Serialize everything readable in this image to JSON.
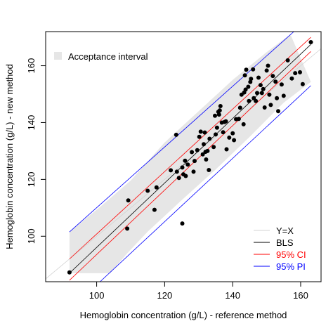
{
  "chart_data": {
    "type": "scatter",
    "xlabel": "Hemoglobin concentration (g/L) - reference method",
    "ylabel": "Hemoglobin concentration (g/L) - new method",
    "xlim": [
      85,
      166
    ],
    "ylim": [
      84,
      172
    ],
    "xticks": [
      100,
      120,
      140,
      160
    ],
    "yticks": [
      100,
      120,
      140,
      160
    ],
    "grid": false,
    "legend_top": {
      "position": "top-left",
      "label": "Acceptance interval",
      "color": "#e6e6e6"
    },
    "legend_bottom": {
      "position": "bottom-right",
      "entries": [
        {
          "label": "Y=X",
          "color": "#d3d3d3"
        },
        {
          "label": "BLS",
          "color": "#000000"
        },
        {
          "label": "95% CI",
          "color": "#ff0000"
        },
        {
          "label": "95% PI",
          "color": "#0000ff"
        }
      ]
    },
    "acceptance_interval": {
      "color": "#e6e6e6",
      "upper": [
        [
          92,
          101.5
        ],
        [
          101,
          110.3
        ],
        [
          110,
          119.6
        ],
        [
          120,
          133
        ],
        [
          130,
          144
        ],
        [
          140,
          155
        ],
        [
          150,
          164.8
        ],
        [
          157,
          171
        ]
      ],
      "lower": [
        [
          163,
          154.3
        ],
        [
          155,
          147
        ],
        [
          145,
          135
        ],
        [
          135,
          123.5
        ],
        [
          125,
          112.7
        ],
        [
          115,
          101.6
        ],
        [
          109,
          94
        ],
        [
          104,
          87
        ],
        [
          92,
          87
        ]
      ]
    },
    "lines": {
      "yx": {
        "x": [
          85,
          166
        ],
        "y": [
          85,
          166
        ]
      },
      "bls": {
        "x": [
          92,
          163
        ],
        "y": [
          87,
          167.5
        ]
      },
      "ci_upper": {
        "x": [
          92,
          163
        ],
        "y": [
          92,
          170
        ]
      },
      "ci_lower": {
        "x": [
          92,
          163
        ],
        "y": [
          84.5,
          165
        ]
      },
      "pi_upper": {
        "x": [
          92,
          158
        ],
        "y": [
          101.5,
          172
        ]
      },
      "pi_lower": {
        "x": [
          101,
          163
        ],
        "y": [
          84,
          153
        ]
      }
    },
    "points": [
      [
        92,
        87.3
      ],
      [
        109,
        102.7
      ],
      [
        109.3,
        112.6
      ],
      [
        115,
        116
      ],
      [
        117,
        109.3
      ],
      [
        117.6,
        117.2
      ],
      [
        121.8,
        123.2
      ],
      [
        123.4,
        135.7
      ],
      [
        123.6,
        122.7
      ],
      [
        124.2,
        120.5
      ],
      [
        125.2,
        124.2
      ],
      [
        125.2,
        104.5
      ],
      [
        125.5,
        121.8
      ],
      [
        126,
        126.6
      ],
      [
        126.2,
        121.2
      ],
      [
        126.8,
        125.2
      ],
      [
        128,
        129.6
      ],
      [
        128.5,
        122.7
      ],
      [
        128.8,
        126.5
      ],
      [
        129.6,
        130.3
      ],
      [
        130.2,
        135
      ],
      [
        130.6,
        136.8
      ],
      [
        131.2,
        128.8
      ],
      [
        131.5,
        132.4
      ],
      [
        131.8,
        136.5
      ],
      [
        132,
        129.7
      ],
      [
        132.2,
        127
      ],
      [
        132.6,
        130
      ],
      [
        133,
        123.3
      ],
      [
        133.2,
        134.3
      ],
      [
        134.4,
        131.4
      ],
      [
        134.8,
        142.4
      ],
      [
        135,
        135.8
      ],
      [
        135.4,
        138.2
      ],
      [
        135.8,
        143.8
      ],
      [
        136,
        142.8
      ],
      [
        136.2,
        144.3
      ],
      [
        136.4,
        145.8
      ],
      [
        136.8,
        140
      ],
      [
        137.2,
        136.6
      ],
      [
        137.6,
        140.2
      ],
      [
        138,
        140.4
      ],
      [
        138.2,
        130.6
      ],
      [
        139,
        134.7
      ],
      [
        140,
        136.2
      ],
      [
        140.4,
        133.8
      ],
      [
        141,
        141.2
      ],
      [
        141.8,
        141.3
      ],
      [
        142.2,
        145.2
      ],
      [
        142.6,
        149.8
      ],
      [
        143.2,
        139.4
      ],
      [
        143.4,
        150.6
      ],
      [
        143.6,
        156.6
      ],
      [
        143.8,
        151.6
      ],
      [
        144,
        158.6
      ],
      [
        144.6,
        152.6
      ],
      [
        144.8,
        147.6
      ],
      [
        145.2,
        154.3
      ],
      [
        145.4,
        155.4
      ],
      [
        146,
        158.7
      ],
      [
        146.2,
        148.6
      ],
      [
        146.8,
        147.6
      ],
      [
        147.2,
        150.4
      ],
      [
        147.6,
        155.8
      ],
      [
        148.2,
        153.2
      ],
      [
        148.6,
        150.4
      ],
      [
        149,
        151.8
      ],
      [
        149.4,
        145.3
      ],
      [
        150,
        158.3
      ],
      [
        150.4,
        160
      ],
      [
        150.8,
        149.8
      ],
      [
        151.2,
        146.2
      ],
      [
        151.8,
        156.4
      ],
      [
        152.6,
        154.4
      ],
      [
        153,
        148.6
      ],
      [
        153.4,
        144
      ],
      [
        154.4,
        153.4
      ],
      [
        155,
        149.4
      ],
      [
        156.2,
        161.9
      ],
      [
        157.4,
        155.5
      ],
      [
        158.4,
        157.4
      ],
      [
        159.8,
        157.7
      ],
      [
        160.6,
        153.5
      ],
      [
        163,
        168.3
      ]
    ]
  }
}
